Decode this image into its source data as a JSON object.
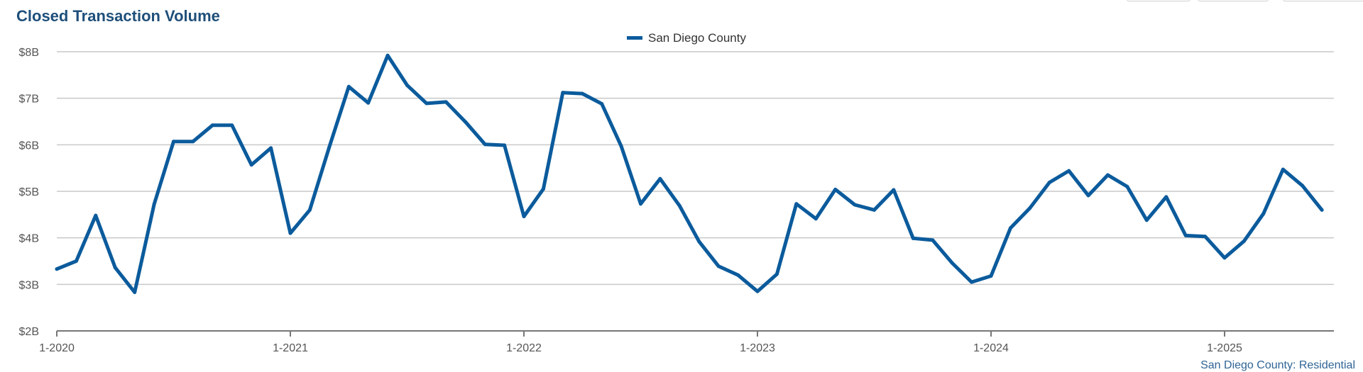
{
  "chart_data": {
    "type": "line",
    "title": "Closed Transaction Volume",
    "footer": "San Diego County: Residential",
    "legend_position": "top-center",
    "grid": true,
    "y_unit": "billions USD",
    "ylim": [
      2,
      8
    ],
    "y_ticks": [
      2,
      3,
      4,
      5,
      6,
      7,
      8
    ],
    "y_tick_labels": [
      "$2B",
      "$3B",
      "$4B",
      "$5B",
      "$6B",
      "$7B",
      "$8B"
    ],
    "x_tick_labels": [
      "1-2020",
      "1-2021",
      "1-2022",
      "1-2023",
      "1-2024",
      "1-2025"
    ],
    "x_tick_positions": [
      0,
      12,
      24,
      36,
      48,
      60
    ],
    "series": [
      {
        "name": "San Diego County",
        "color": "#0b5b9c",
        "values": [
          3.33,
          3.5,
          4.48,
          3.36,
          2.83,
          4.72,
          6.07,
          6.07,
          6.42,
          6.42,
          5.57,
          5.93,
          4.1,
          4.6,
          5.95,
          7.25,
          6.9,
          7.92,
          7.28,
          6.89,
          6.92,
          6.49,
          6.01,
          5.99,
          4.46,
          5.05,
          7.12,
          7.1,
          6.88,
          5.97,
          4.73,
          5.27,
          4.69,
          3.92,
          3.39,
          3.2,
          2.85,
          3.22,
          4.73,
          4.41,
          5.04,
          4.71,
          4.6,
          5.03,
          3.99,
          3.95,
          3.46,
          3.05,
          3.18,
          4.21,
          4.64,
          5.19,
          5.44,
          4.91,
          5.35,
          5.1,
          4.38,
          4.88,
          4.05,
          4.03,
          3.57,
          3.93,
          4.52,
          5.47,
          5.12,
          4.6
        ]
      }
    ]
  }
}
